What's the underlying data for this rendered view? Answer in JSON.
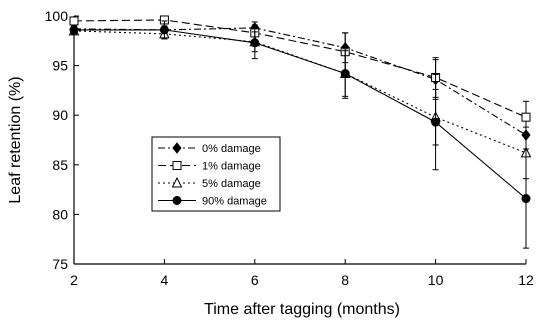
{
  "chart_data": {
    "type": "line",
    "title": "",
    "xlabel": "Time after tagging (months)",
    "ylabel": "Leaf retention (%)",
    "xlim": [
      2,
      12
    ],
    "ylim": [
      75,
      100
    ],
    "x_ticks": [
      2,
      4,
      6,
      8,
      10,
      12
    ],
    "y_ticks": [
      75,
      80,
      85,
      90,
      95,
      100
    ],
    "grid": false,
    "legend_position": "lower-left",
    "series": [
      {
        "name": "0% damage",
        "marker": "diamond-filled",
        "dash": "long-dash-dot",
        "x": [
          2,
          4,
          6,
          8,
          10,
          12
        ],
        "y": [
          98.7,
          98.6,
          98.8,
          96.8,
          93.6,
          88.0
        ],
        "err": [
          0.3,
          0.4,
          0.6,
          1.5,
          2.0,
          1.8
        ]
      },
      {
        "name": "1% damage",
        "marker": "square-open",
        "dash": "long-dash",
        "x": [
          2,
          4,
          6,
          8,
          10,
          12
        ],
        "y": [
          99.5,
          99.6,
          98.3,
          96.4,
          93.8,
          89.8
        ],
        "err": [
          0.3,
          0.3,
          0.8,
          1.9,
          2.0,
          1.6
        ]
      },
      {
        "name": "5% damage",
        "marker": "triangle-open",
        "dash": "dotted",
        "x": [
          2,
          4,
          6,
          8,
          10,
          12
        ],
        "y": [
          98.5,
          98.2,
          97.4,
          94.2,
          89.8,
          86.2
        ],
        "err": [
          0.3,
          0.5,
          1.0,
          2.3,
          2.8,
          2.6
        ]
      },
      {
        "name": "90% damage",
        "marker": "circle-filled",
        "dash": "solid",
        "x": [
          2,
          4,
          6,
          8,
          10,
          12
        ],
        "y": [
          98.6,
          98.6,
          97.3,
          94.2,
          89.3,
          81.6
        ],
        "err": [
          0.4,
          0.9,
          1.6,
          2.5,
          4.8,
          5.0
        ]
      }
    ]
  }
}
